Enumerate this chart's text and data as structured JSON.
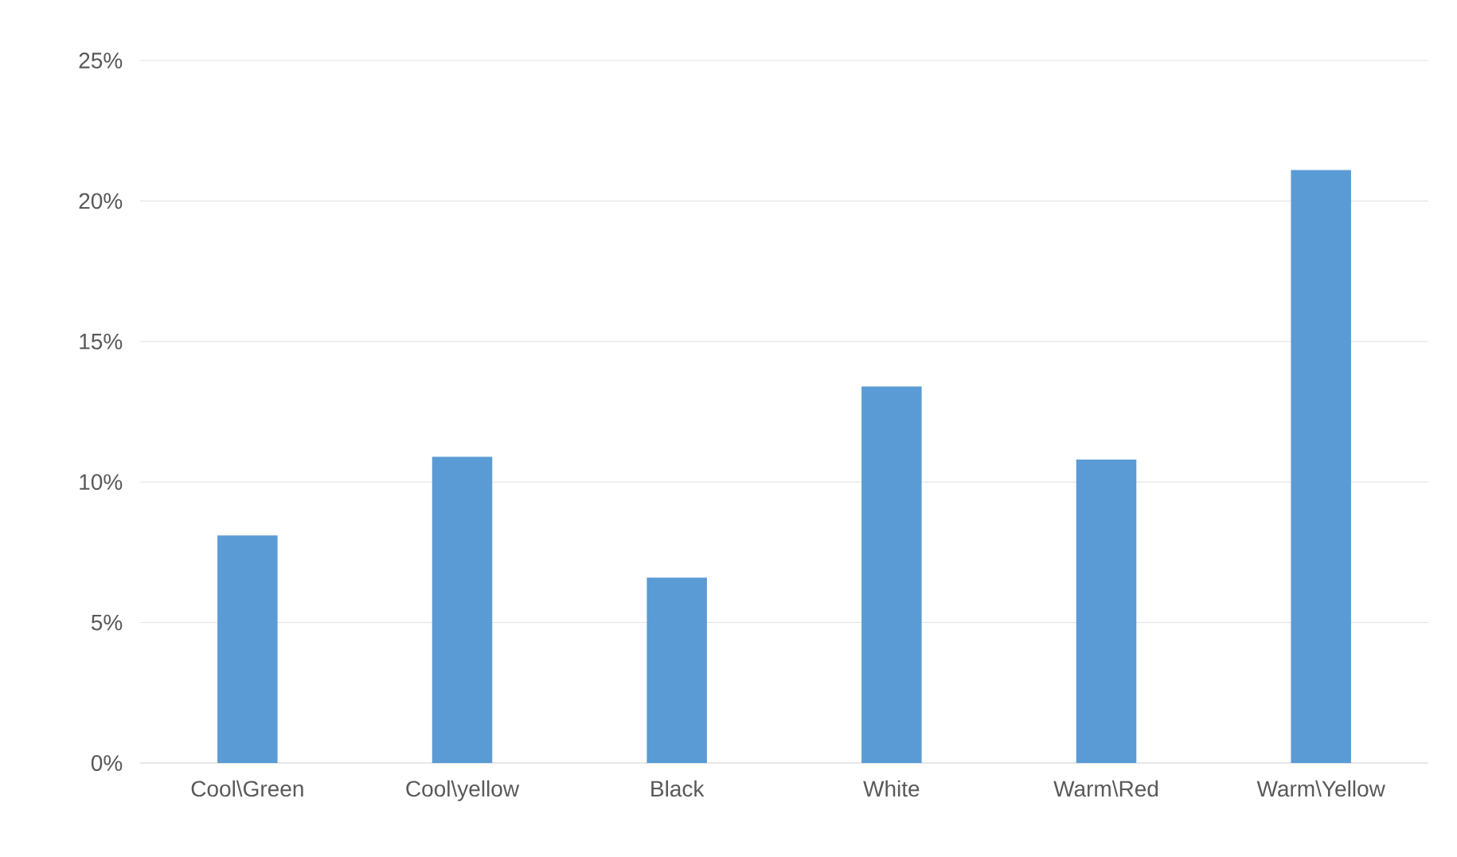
{
  "chart_data": {
    "type": "bar",
    "categories": [
      "Cool\\Green",
      "Cool\\yellow",
      "Black",
      "White",
      "Warm\\Red",
      "Warm\\Yellow"
    ],
    "values": [
      8.1,
      10.9,
      6.6,
      13.4,
      10.8,
      21.1
    ],
    "color": "#5b9bd5",
    "ylim": [
      0,
      25
    ],
    "yticks": [
      {
        "value": 0,
        "label": "0%"
      },
      {
        "value": 5,
        "label": "5%"
      },
      {
        "value": 10,
        "label": "10%"
      },
      {
        "value": 15,
        "label": "15%"
      },
      {
        "value": 20,
        "label": "20%"
      },
      {
        "value": 25,
        "label": "25%"
      }
    ],
    "grid": "y"
  }
}
